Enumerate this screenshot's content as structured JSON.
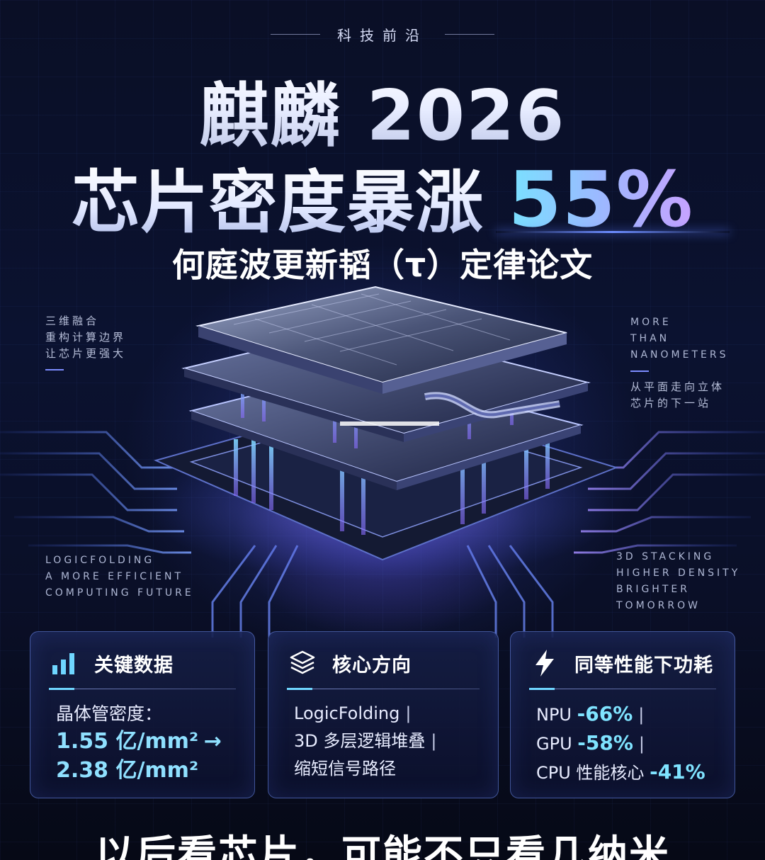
{
  "header": {
    "kicker": "科技前沿",
    "title_line1": "麒麟 2026",
    "title_line2_main": "芯片密度暴涨",
    "title_line2_accent": "55%",
    "subtitle": "何庭波更新韬（τ）定律论文"
  },
  "side_notes": {
    "top_left": [
      "三维融合",
      "重构计算边界",
      "让芯片更强大"
    ],
    "top_right_en": [
      "MORE",
      "THAN",
      "NANOMETERS"
    ],
    "top_right_cn": [
      "从平面走向立体",
      "芯片的下一站"
    ],
    "bottom_left": [
      "LOGICFOLDING",
      "A MORE EFFICIENT",
      "COMPUTING FUTURE"
    ],
    "bottom_right": [
      "3D STACKING",
      "HIGHER DENSITY",
      "BRIGHTER TOMORROW"
    ]
  },
  "cards": {
    "key_data": {
      "icon": "bar-chart-icon",
      "title": "关键数据",
      "label": "晶体管密度：",
      "from_value": "1.55 亿/mm²",
      "arrow": "→",
      "to_value": "2.38 亿/mm²"
    },
    "core_direction": {
      "icon": "layers-icon",
      "title": "核心方向",
      "items": [
        "LogicFolding",
        "3D 多层逻辑堆叠",
        "缩短信号路径"
      ],
      "separator": "|"
    },
    "power": {
      "icon": "lightning-icon",
      "title": "同等性能下功耗",
      "rows": [
        {
          "label": "NPU",
          "value": "-66%"
        },
        {
          "label": "GPU",
          "value": "-58%"
        },
        {
          "label": "CPU 性能核心",
          "value": "-41%"
        }
      ],
      "separator": "|"
    }
  },
  "footer": {
    "tagline": "以后看芯片，可能不只看几纳米"
  },
  "colors": {
    "background": "#070b1c",
    "accent_cyan": "#7fe3ff",
    "accent_violet": "#c7a2ff",
    "card_border": "#6e8cf0"
  }
}
